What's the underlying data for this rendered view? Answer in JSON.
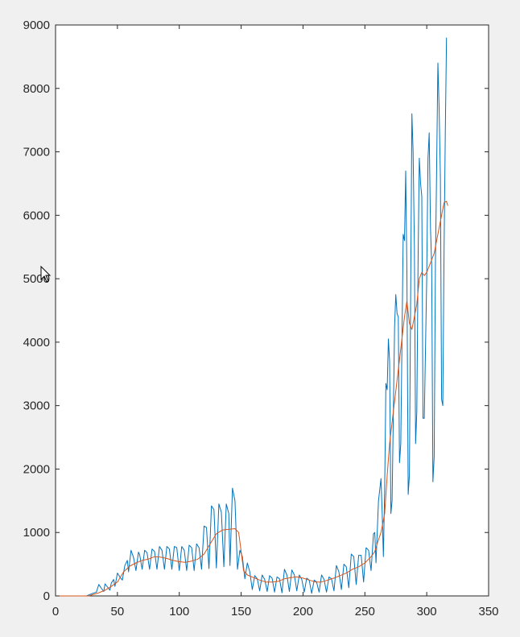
{
  "chart_data": {
    "type": "line",
    "title": "",
    "xlabel": "",
    "ylabel": "",
    "xlim": [
      0,
      350
    ],
    "ylim": [
      0,
      9000
    ],
    "xticks": [
      0,
      50,
      100,
      150,
      200,
      250,
      300,
      350
    ],
    "yticks": [
      0,
      1000,
      2000,
      3000,
      4000,
      5000,
      6000,
      7000,
      8000,
      9000
    ],
    "xtick_labels": [
      "0",
      "50",
      "100",
      "150",
      "200",
      "250",
      "300",
      "350"
    ],
    "ytick_labels": [
      "0",
      "1000",
      "2000",
      "3000",
      "4000",
      "5000",
      "6000",
      "7000",
      "8000",
      "9000"
    ],
    "grid": false,
    "legend": "none",
    "series": [
      {
        "color": "#0072bd",
        "points": [
          [
            0,
            0
          ],
          [
            25,
            0
          ],
          [
            30,
            40
          ],
          [
            33,
            60
          ],
          [
            35,
            180
          ],
          [
            37,
            120
          ],
          [
            39,
            70
          ],
          [
            40,
            190
          ],
          [
            42,
            140
          ],
          [
            44,
            90
          ],
          [
            45,
            200
          ],
          [
            47,
            260
          ],
          [
            48,
            150
          ],
          [
            50,
            360
          ],
          [
            52,
            300
          ],
          [
            54,
            250
          ],
          [
            56,
            480
          ],
          [
            58,
            560
          ],
          [
            59,
            380
          ],
          [
            61,
            720
          ],
          [
            63,
            610
          ],
          [
            65,
            400
          ],
          [
            67,
            690
          ],
          [
            68,
            650
          ],
          [
            70,
            420
          ],
          [
            72,
            720
          ],
          [
            74,
            680
          ],
          [
            76,
            420
          ],
          [
            78,
            740
          ],
          [
            80,
            700
          ],
          [
            82,
            420
          ],
          [
            84,
            780
          ],
          [
            86,
            720
          ],
          [
            88,
            420
          ],
          [
            90,
            780
          ],
          [
            92,
            740
          ],
          [
            94,
            420
          ],
          [
            96,
            780
          ],
          [
            98,
            760
          ],
          [
            100,
            400
          ],
          [
            102,
            780
          ],
          [
            104,
            720
          ],
          [
            106,
            400
          ],
          [
            108,
            800
          ],
          [
            110,
            760
          ],
          [
            112,
            400
          ],
          [
            114,
            820
          ],
          [
            116,
            760
          ],
          [
            118,
            420
          ],
          [
            120,
            1100
          ],
          [
            122,
            1080
          ],
          [
            124,
            430
          ],
          [
            126,
            1420
          ],
          [
            128,
            1360
          ],
          [
            130,
            440
          ],
          [
            132,
            1450
          ],
          [
            134,
            1320
          ],
          [
            136,
            460
          ],
          [
            138,
            1450
          ],
          [
            140,
            1300
          ],
          [
            141,
            480
          ],
          [
            143,
            1700
          ],
          [
            145,
            1500
          ],
          [
            147,
            420
          ],
          [
            149,
            720
          ],
          [
            151,
            620
          ],
          [
            153,
            270
          ],
          [
            155,
            520
          ],
          [
            157,
            380
          ],
          [
            159,
            100
          ],
          [
            161,
            320
          ],
          [
            163,
            270
          ],
          [
            165,
            80
          ],
          [
            167,
            330
          ],
          [
            169,
            260
          ],
          [
            171,
            70
          ],
          [
            173,
            320
          ],
          [
            175,
            280
          ],
          [
            177,
            60
          ],
          [
            179,
            300
          ],
          [
            181,
            270
          ],
          [
            183,
            50
          ],
          [
            185,
            420
          ],
          [
            187,
            330
          ],
          [
            189,
            70
          ],
          [
            191,
            410
          ],
          [
            193,
            330
          ],
          [
            195,
            80
          ],
          [
            197,
            330
          ],
          [
            199,
            260
          ],
          [
            201,
            60
          ],
          [
            203,
            280
          ],
          [
            205,
            250
          ],
          [
            207,
            40
          ],
          [
            209,
            250
          ],
          [
            211,
            220
          ],
          [
            213,
            60
          ],
          [
            215,
            330
          ],
          [
            217,
            260
          ],
          [
            219,
            60
          ],
          [
            221,
            300
          ],
          [
            223,
            270
          ],
          [
            225,
            80
          ],
          [
            227,
            480
          ],
          [
            229,
            380
          ],
          [
            231,
            100
          ],
          [
            233,
            500
          ],
          [
            235,
            460
          ],
          [
            237,
            130
          ],
          [
            239,
            660
          ],
          [
            241,
            620
          ],
          [
            243,
            180
          ],
          [
            245,
            640
          ],
          [
            247,
            640
          ],
          [
            249,
            220
          ],
          [
            251,
            760
          ],
          [
            253,
            720
          ],
          [
            255,
            400
          ],
          [
            257,
            980
          ],
          [
            258,
            1000
          ],
          [
            259,
            520
          ],
          [
            261,
            1500
          ],
          [
            263,
            1850
          ],
          [
            264,
            1300
          ],
          [
            265,
            620
          ],
          [
            266,
            1700
          ],
          [
            267,
            3350
          ],
          [
            268,
            3250
          ],
          [
            269,
            4050
          ],
          [
            270,
            3700
          ],
          [
            271,
            1300
          ],
          [
            272,
            1500
          ],
          [
            274,
            4250
          ],
          [
            275,
            4750
          ],
          [
            276,
            4450
          ],
          [
            277,
            4400
          ],
          [
            278,
            2100
          ],
          [
            279,
            2400
          ],
          [
            281,
            5700
          ],
          [
            282,
            5600
          ],
          [
            283,
            6700
          ],
          [
            284,
            5100
          ],
          [
            285,
            1600
          ],
          [
            286,
            1900
          ],
          [
            288,
            7600
          ],
          [
            289,
            7000
          ],
          [
            290,
            5500
          ],
          [
            291,
            2400
          ],
          [
            292,
            2900
          ],
          [
            293,
            5300
          ],
          [
            294,
            6900
          ],
          [
            295,
            6500
          ],
          [
            296,
            6300
          ],
          [
            297,
            2800
          ],
          [
            298,
            2800
          ],
          [
            300,
            5000
          ],
          [
            301,
            6900
          ],
          [
            302,
            7300
          ],
          [
            303,
            5800
          ],
          [
            304,
            5200
          ],
          [
            305,
            1800
          ],
          [
            306,
            2200
          ],
          [
            307,
            5200
          ],
          [
            308,
            6700
          ],
          [
            309,
            8400
          ],
          [
            310,
            7700
          ],
          [
            311,
            6600
          ],
          [
            312,
            3100
          ],
          [
            313,
            3000
          ],
          [
            314,
            5500
          ],
          [
            315,
            7300
          ],
          [
            316,
            8800
          ]
        ]
      },
      {
        "color": "#d95319",
        "points": [
          [
            0,
            0
          ],
          [
            27,
            0
          ],
          [
            30,
            20
          ],
          [
            35,
            50
          ],
          [
            40,
            90
          ],
          [
            45,
            150
          ],
          [
            50,
            220
          ],
          [
            55,
            380
          ],
          [
            60,
            470
          ],
          [
            65,
            520
          ],
          [
            70,
            560
          ],
          [
            75,
            580
          ],
          [
            80,
            620
          ],
          [
            85,
            610
          ],
          [
            90,
            590
          ],
          [
            95,
            560
          ],
          [
            100,
            540
          ],
          [
            105,
            530
          ],
          [
            110,
            550
          ],
          [
            115,
            580
          ],
          [
            120,
            660
          ],
          [
            125,
            820
          ],
          [
            130,
            980
          ],
          [
            135,
            1040
          ],
          [
            140,
            1050
          ],
          [
            145,
            1060
          ],
          [
            148,
            1000
          ],
          [
            150,
            700
          ],
          [
            152,
            400
          ],
          [
            155,
            330
          ],
          [
            160,
            290
          ],
          [
            165,
            250
          ],
          [
            170,
            220
          ],
          [
            175,
            220
          ],
          [
            180,
            230
          ],
          [
            185,
            270
          ],
          [
            190,
            290
          ],
          [
            195,
            300
          ],
          [
            200,
            280
          ],
          [
            205,
            250
          ],
          [
            210,
            220
          ],
          [
            215,
            220
          ],
          [
            220,
            250
          ],
          [
            225,
            280
          ],
          [
            230,
            320
          ],
          [
            235,
            360
          ],
          [
            240,
            420
          ],
          [
            245,
            460
          ],
          [
            250,
            520
          ],
          [
            255,
            620
          ],
          [
            258,
            700
          ],
          [
            260,
            830
          ],
          [
            263,
            1000
          ],
          [
            266,
            1300
          ],
          [
            268,
            1900
          ],
          [
            270,
            2400
          ],
          [
            273,
            2900
          ],
          [
            276,
            3400
          ],
          [
            279,
            3900
          ],
          [
            282,
            4400
          ],
          [
            284,
            4650
          ],
          [
            286,
            4300
          ],
          [
            288,
            4200
          ],
          [
            290,
            4400
          ],
          [
            292,
            4600
          ],
          [
            294,
            5000
          ],
          [
            296,
            5100
          ],
          [
            298,
            5050
          ],
          [
            300,
            5100
          ],
          [
            302,
            5200
          ],
          [
            304,
            5300
          ],
          [
            306,
            5400
          ],
          [
            308,
            5600
          ],
          [
            310,
            5800
          ],
          [
            312,
            6000
          ],
          [
            314,
            6200
          ],
          [
            316,
            6220
          ],
          [
            317,
            6150
          ]
        ]
      }
    ]
  }
}
